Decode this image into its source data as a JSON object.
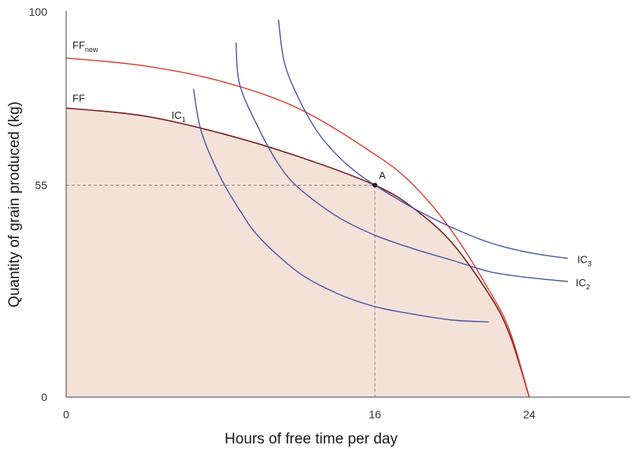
{
  "chart_data": {
    "type": "line",
    "title": "",
    "xlabel": "Hours of free time per day",
    "ylabel": "Quantity of grain produced (kg)",
    "xlim": [
      0,
      27
    ],
    "ylim": [
      0,
      100
    ],
    "x_ticks": [
      "0",
      "16",
      "24"
    ],
    "y_ticks": [
      "0",
      "55",
      "100"
    ],
    "grid": false,
    "colors": {
      "frontier": "#7a1f1f",
      "frontier_new": "#e03c2a",
      "indifference": "#4a54a8",
      "shade": "#f4e2d8",
      "guide": "#888888"
    },
    "series": [
      {
        "name": "FF",
        "label_main": "FF",
        "label_sub": "",
        "points": [
          [
            0,
            75
          ],
          [
            4,
            73
          ],
          [
            8,
            68.5
          ],
          [
            12,
            62.5
          ],
          [
            16,
            55
          ],
          [
            18,
            49
          ],
          [
            20,
            40
          ],
          [
            22,
            26
          ],
          [
            23,
            16
          ],
          [
            24,
            0
          ]
        ]
      },
      {
        "name": "FFnew",
        "label_main": "FF",
        "label_sub": "new",
        "points": [
          [
            0,
            88
          ],
          [
            4,
            86
          ],
          [
            8,
            82
          ],
          [
            12,
            75
          ],
          [
            16,
            63
          ],
          [
            18,
            55
          ],
          [
            20,
            43
          ],
          [
            22,
            27
          ],
          [
            23,
            17
          ],
          [
            24,
            0
          ]
        ]
      },
      {
        "name": "IC1",
        "label_main": "IC",
        "label_sub": "1",
        "points": [
          [
            6.6,
            80
          ],
          [
            7,
            69
          ],
          [
            8,
            57
          ],
          [
            9,
            48.5
          ],
          [
            10,
            41.5
          ],
          [
            12,
            32.5
          ],
          [
            14,
            27
          ],
          [
            16,
            23.5
          ],
          [
            18,
            21.5
          ],
          [
            20,
            20
          ],
          [
            21.9,
            19.5
          ]
        ]
      },
      {
        "name": "IC2",
        "label_main": "IC",
        "label_sub": "2",
        "points": [
          [
            8.8,
            92
          ],
          [
            9,
            81
          ],
          [
            10,
            69.5
          ],
          [
            11,
            60.5
          ],
          [
            12,
            54.5
          ],
          [
            14,
            47
          ],
          [
            16,
            42
          ],
          [
            18,
            38.5
          ],
          [
            20,
            35.5
          ],
          [
            22,
            32.5
          ],
          [
            24,
            31
          ],
          [
            26,
            30
          ]
        ]
      },
      {
        "name": "IC3",
        "label_main": "IC",
        "label_sub": "3",
        "points": [
          [
            11,
            98
          ],
          [
            11.3,
            87
          ],
          [
            12,
            78
          ],
          [
            13,
            69
          ],
          [
            14,
            63
          ],
          [
            15,
            58.5
          ],
          [
            16,
            55
          ],
          [
            18,
            49
          ],
          [
            20,
            44
          ],
          [
            22,
            40
          ],
          [
            24,
            37.5
          ],
          [
            26,
            36
          ]
        ]
      }
    ],
    "annotations": [
      {
        "label": "A",
        "x": 16,
        "y": 55
      }
    ]
  }
}
